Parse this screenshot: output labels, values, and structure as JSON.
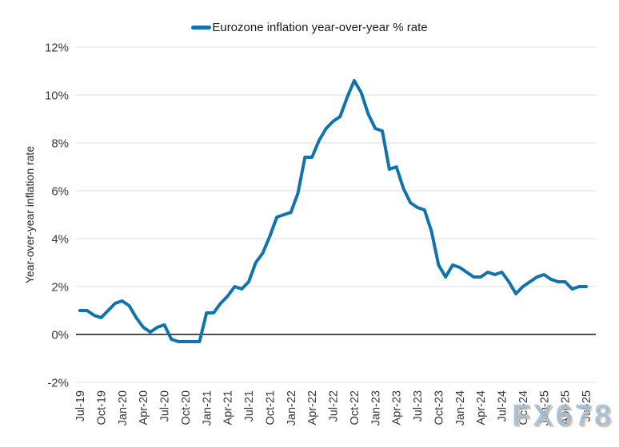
{
  "watermark": {
    "text": "FX678"
  },
  "chart_data": {
    "type": "line",
    "title": "",
    "legend": "Eurozone inflation year-over-year % rate",
    "ylabel": "Year-over-year inflation rate",
    "xlabel": "",
    "grid": "horizontal",
    "legend_position": "top-center",
    "ylim": [
      -2,
      12
    ],
    "y_tick_values": [
      12,
      10,
      8,
      6,
      4,
      2,
      0,
      -2
    ],
    "y_tick_labels": [
      "12%",
      "10%",
      "8%",
      "6%",
      "4%",
      "2%",
      "0%",
      "-2%"
    ],
    "x_tick_every": 3,
    "x": [
      "Jul-19",
      "Aug-19",
      "Sep-19",
      "Oct-19",
      "Nov-19",
      "Dec-19",
      "Jan-20",
      "Feb-20",
      "Mar-20",
      "Apr-20",
      "May-20",
      "Jun-20",
      "Jul-20",
      "Aug-20",
      "Sep-20",
      "Oct-20",
      "Nov-20",
      "Dec-20",
      "Jan-21",
      "Feb-21",
      "Mar-21",
      "Apr-21",
      "May-21",
      "Jun-21",
      "Jul-21",
      "Aug-21",
      "Sep-21",
      "Oct-21",
      "Nov-21",
      "Dec-21",
      "Jan-22",
      "Feb-22",
      "Mar-22",
      "Apr-22",
      "May-22",
      "Jun-22",
      "Jul-22",
      "Aug-22",
      "Sep-22",
      "Oct-22",
      "Nov-22",
      "Dec-22",
      "Jan-23",
      "Feb-23",
      "Mar-23",
      "Apr-23",
      "May-23",
      "Jun-23",
      "Jul-23",
      "Aug-23",
      "Sep-23",
      "Oct-23",
      "Nov-23",
      "Dec-23",
      "Jan-24",
      "Feb-24",
      "Mar-24",
      "Apr-24",
      "May-24",
      "Jun-24",
      "Jul-24",
      "Aug-24",
      "Sep-24",
      "Oct-24",
      "Nov-24",
      "Dec-24",
      "Jan-25",
      "Feb-25",
      "Mar-25",
      "Apr-25",
      "May-25",
      "Jun-25",
      "Jul-25"
    ],
    "series": [
      {
        "name": "Eurozone inflation year-over-year % rate",
        "values": [
          1.0,
          1.0,
          0.8,
          0.7,
          1.0,
          1.3,
          1.4,
          1.2,
          0.7,
          0.3,
          0.1,
          0.3,
          0.4,
          -0.2,
          -0.3,
          -0.3,
          -0.3,
          -0.3,
          0.9,
          0.9,
          1.3,
          1.6,
          2.0,
          1.9,
          2.2,
          3.0,
          3.4,
          4.1,
          4.9,
          5.0,
          5.1,
          5.9,
          7.4,
          7.4,
          8.1,
          8.6,
          8.9,
          9.1,
          9.9,
          10.6,
          10.1,
          9.2,
          8.6,
          8.5,
          6.9,
          7.0,
          6.1,
          5.5,
          5.3,
          5.2,
          4.3,
          2.9,
          2.4,
          2.9,
          2.8,
          2.6,
          2.4,
          2.4,
          2.6,
          2.5,
          2.6,
          2.2,
          1.7,
          2.0,
          2.2,
          2.4,
          2.5,
          2.3,
          2.2,
          2.2,
          1.9,
          2.0,
          2.0
        ]
      }
    ],
    "colors": {
      "line": "#1173ac",
      "grid": "#dcdcdc",
      "zero_line": "#4d4d4d",
      "tick_text": "#383838",
      "legend_text": "#1a1a1a",
      "background": "#ffffff"
    }
  }
}
